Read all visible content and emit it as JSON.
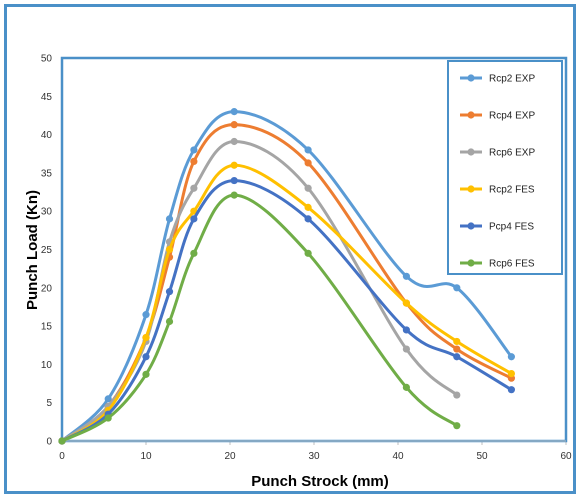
{
  "chart_data": {
    "type": "line",
    "title": "",
    "xlabel": "Punch Strock (mm)",
    "ylabel": "Punch Load (Kn)",
    "xlim": [
      0,
      60
    ],
    "ylim": [
      0,
      50
    ],
    "xticks": [
      0,
      10,
      20,
      30,
      40,
      50,
      60
    ],
    "yticks": [
      0,
      5,
      10,
      15,
      20,
      25,
      30,
      35,
      40,
      45,
      50
    ],
    "grid": false,
    "legend_position": "top-right",
    "series": [
      {
        "name": "Rcp2 EXP",
        "color": "#5b9bd5",
        "x": [
          0,
          5.5,
          10,
          12.8,
          15.7,
          20.5,
          29.3,
          41,
          47,
          53.5
        ],
        "y": [
          0,
          5.5,
          16.5,
          29,
          38,
          43,
          38,
          21.5,
          20,
          11
        ]
      },
      {
        "name": "Rcp4 EXP",
        "color": "#ed7d31",
        "x": [
          0,
          5.5,
          10,
          12.8,
          15.7,
          20.5,
          29.3,
          41,
          47,
          53.5
        ],
        "y": [
          0,
          4.5,
          13.5,
          24,
          36.5,
          41.3,
          36.3,
          18,
          12,
          8.2
        ]
      },
      {
        "name": "Rcp6 EXP",
        "color": "#a5a5a5",
        "x": [
          0,
          5.5,
          10,
          12.8,
          15.7,
          20.5,
          29.3,
          41,
          47
        ],
        "y": [
          0,
          4.5,
          13,
          26,
          33,
          39.1,
          33,
          12,
          6
        ]
      },
      {
        "name": "Rcp2 FES",
        "color": "#ffc000",
        "x": [
          0,
          5.5,
          10,
          12.8,
          15.7,
          20.5,
          29.3,
          41,
          47,
          53.5
        ],
        "y": [
          0,
          4,
          13.5,
          25,
          30,
          36,
          30.5,
          18,
          13,
          8.8
        ]
      },
      {
        "name": "Pcp4 FES",
        "color": "#4472c4",
        "x": [
          0,
          5.5,
          10,
          12.8,
          15.7,
          20.5,
          29.3,
          41,
          47,
          53.5
        ],
        "y": [
          0,
          3.5,
          11,
          19.5,
          29,
          34,
          29,
          14.5,
          11,
          6.7
        ]
      },
      {
        "name": "Rcp6 FES",
        "color": "#70ad47",
        "x": [
          0,
          5.5,
          10,
          12.8,
          15.7,
          20.5,
          29.3,
          41,
          47
        ],
        "y": [
          0,
          3,
          8.7,
          15.6,
          24.5,
          32.1,
          24.5,
          7,
          2
        ]
      }
    ]
  }
}
